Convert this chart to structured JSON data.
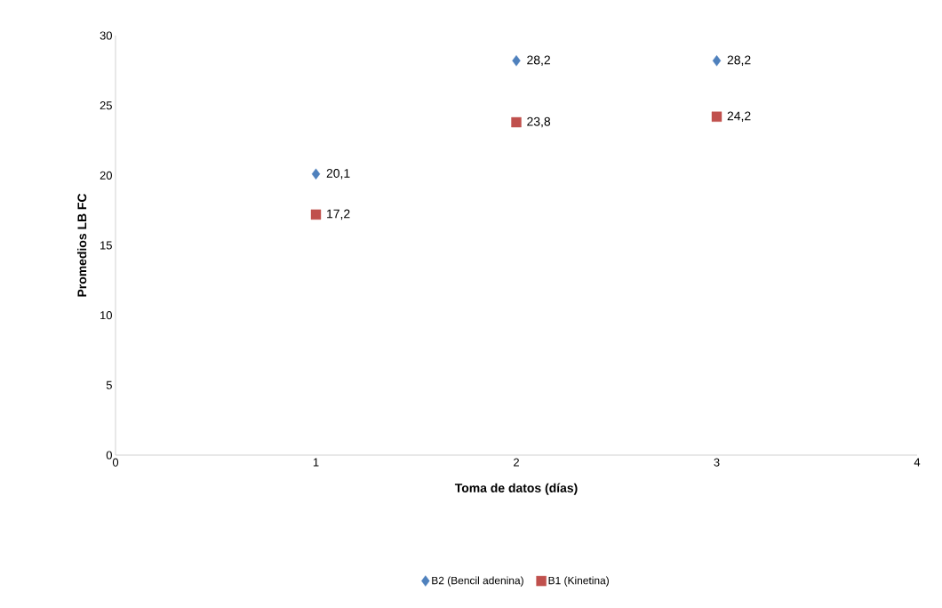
{
  "chart_data": {
    "type": "scatter",
    "xlabel": "Toma de datos (días)",
    "ylabel": "Promedios  LB FC",
    "xlim": [
      0,
      4
    ],
    "ylim": [
      0,
      30
    ],
    "xticks": [
      0,
      1,
      2,
      3,
      4
    ],
    "yticks": [
      0,
      5,
      10,
      15,
      20,
      25,
      30
    ],
    "legend": "bottom",
    "grid": false,
    "series": [
      {
        "name": "B2 (Bencil adenina)",
        "color": "#4f81bd",
        "marker": "diamond",
        "x": [
          1,
          2,
          3
        ],
        "values": [
          20.1,
          28.2,
          28.2
        ],
        "value_labels": [
          "20,1",
          "28,2",
          "28,2"
        ]
      },
      {
        "name": "B1 (Kinetina)",
        "color": "#c0504d",
        "marker": "square",
        "x": [
          1,
          2,
          3
        ],
        "values": [
          17.2,
          23.8,
          24.2
        ],
        "value_labels": [
          "17,2",
          "23,8",
          "24,2"
        ]
      }
    ]
  }
}
